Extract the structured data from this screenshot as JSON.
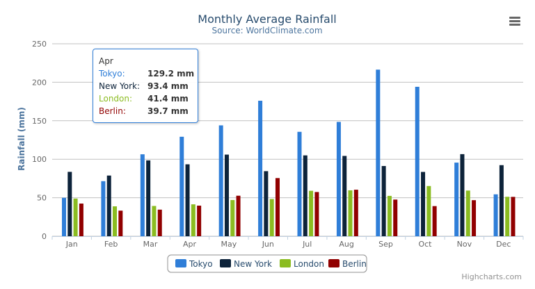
{
  "chart_data": {
    "type": "bar",
    "title": "Monthly Average Rainfall",
    "subtitle": "Source: WorldClimate.com",
    "ylabel": "Rainfall (mm)",
    "xlabel": "",
    "ylim": [
      0,
      250
    ],
    "yticks": [
      0,
      50,
      100,
      150,
      200,
      250
    ],
    "grid": true,
    "legend_position": "bottom-center",
    "categories": [
      "Jan",
      "Feb",
      "Mar",
      "Apr",
      "May",
      "Jun",
      "Jul",
      "Aug",
      "Sep",
      "Oct",
      "Nov",
      "Dec"
    ],
    "series": [
      {
        "name": "Tokyo",
        "color": "#2f7ed8",
        "values": [
          49.9,
          71.5,
          106.4,
          129.2,
          144.0,
          176.0,
          135.6,
          148.5,
          216.4,
          194.1,
          95.6,
          54.4
        ]
      },
      {
        "name": "New York",
        "color": "#0d233a",
        "values": [
          83.6,
          78.8,
          98.5,
          93.4,
          106.0,
          84.5,
          105.0,
          104.3,
          91.2,
          83.5,
          106.6,
          92.3
        ]
      },
      {
        "name": "London",
        "color": "#8bbc21",
        "values": [
          48.9,
          38.8,
          39.3,
          41.4,
          47.0,
          48.3,
          59.0,
          59.6,
          52.4,
          65.2,
          59.3,
          51.2
        ]
      },
      {
        "name": "Berlin",
        "color": "#910000",
        "values": [
          42.4,
          33.2,
          34.5,
          39.7,
          52.6,
          75.5,
          57.4,
          60.4,
          47.6,
          39.1,
          46.8,
          51.1
        ]
      }
    ]
  },
  "tooltip": {
    "header": "Apr",
    "rows": [
      {
        "label": "Tokyo:",
        "value": "129.2 mm",
        "color": "#2f7ed8"
      },
      {
        "label": "New York:",
        "value": "93.4 mm",
        "color": "#0d233a"
      },
      {
        "label": "London:",
        "value": "41.4 mm",
        "color": "#8bbc21"
      },
      {
        "label": "Berlin:",
        "value": "39.7 mm",
        "color": "#910000"
      }
    ]
  },
  "credits": "Highcharts.com",
  "menu_icon": "hamburger-menu-icon"
}
